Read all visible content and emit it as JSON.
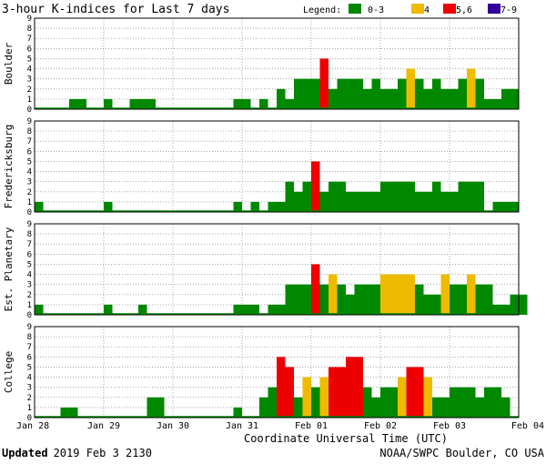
{
  "header": {
    "title": "3-hour K-indices for Last 7 days",
    "legend_title": "Legend:",
    "legend": [
      {
        "label": "0-3",
        "color": "#008800"
      },
      {
        "label": "4",
        "color": "#eebb00"
      },
      {
        "label": "5,6",
        "color": "#ee0000"
      },
      {
        "label": "7-9",
        "color": "#330099"
      }
    ]
  },
  "footer": {
    "updated_label": "Updated",
    "updated_value": "2019 Feb  3 2130",
    "source": "NOAA/SWPC Boulder, CO USA"
  },
  "chart_data": {
    "type": "bar",
    "x_axis": {
      "label": "Coordinate Universal Time (UTC)",
      "ticks": [
        "Jan 28",
        "Jan 29",
        "Jan 30",
        "Jan 31",
        "Feb 01",
        "Feb 02",
        "Feb 03",
        "Feb 04"
      ]
    },
    "y_axis": {
      "ticks": [
        "0",
        "1",
        "2",
        "3",
        "4",
        "5",
        "6",
        "7",
        "8",
        "9"
      ],
      "ylim": [
        0,
        9
      ]
    },
    "intervals_per_day": 8,
    "grid": "dotted",
    "panels": [
      {
        "name": "Boulder",
        "values": [
          0,
          0,
          0,
          0,
          1,
          1,
          0,
          0,
          1,
          0,
          0,
          1,
          1,
          1,
          0,
          0,
          0,
          0,
          0,
          0,
          0,
          0,
          0,
          1,
          1,
          0,
          1,
          0,
          2,
          1,
          3,
          3,
          3,
          5,
          2,
          3,
          3,
          3,
          2,
          3,
          2,
          2,
          3,
          4,
          3,
          2,
          3,
          2,
          2,
          3,
          4,
          3,
          1,
          1,
          2,
          2,
          0
        ]
      },
      {
        "name": "Fredericksburg",
        "values": [
          1,
          0,
          0,
          0,
          0,
          0,
          0,
          0,
          1,
          0,
          0,
          0,
          0,
          0,
          0,
          0,
          0,
          0,
          0,
          0,
          0,
          0,
          0,
          1,
          0,
          1,
          0,
          1,
          1,
          3,
          2,
          3,
          5,
          2,
          3,
          3,
          2,
          2,
          2,
          2,
          3,
          3,
          3,
          3,
          2,
          2,
          3,
          2,
          2,
          3,
          3,
          3,
          0,
          1,
          1,
          1,
          0
        ]
      },
      {
        "name": "Est. Planetary",
        "values": [
          1,
          0,
          0,
          0,
          0,
          0,
          0,
          0,
          1,
          0,
          0,
          0,
          1,
          0,
          0,
          0,
          0,
          0,
          0,
          0,
          0,
          0,
          0,
          1,
          1,
          1,
          0,
          1,
          1,
          3,
          3,
          3,
          5,
          3,
          4,
          3,
          2,
          3,
          3,
          3,
          4,
          4,
          4,
          4,
          3,
          2,
          2,
          4,
          3,
          3,
          4,
          3,
          3,
          1,
          1,
          2,
          2
        ]
      },
      {
        "name": "College",
        "values": [
          0,
          0,
          0,
          1,
          1,
          0,
          0,
          0,
          0,
          0,
          0,
          0,
          0,
          2,
          2,
          0,
          0,
          0,
          0,
          0,
          0,
          0,
          0,
          1,
          0,
          0,
          2,
          3,
          6,
          5,
          2,
          4,
          3,
          4,
          5,
          5,
          6,
          6,
          3,
          2,
          3,
          3,
          4,
          5,
          5,
          4,
          2,
          2,
          3,
          3,
          3,
          2,
          3,
          3,
          2,
          0,
          0
        ]
      }
    ]
  }
}
